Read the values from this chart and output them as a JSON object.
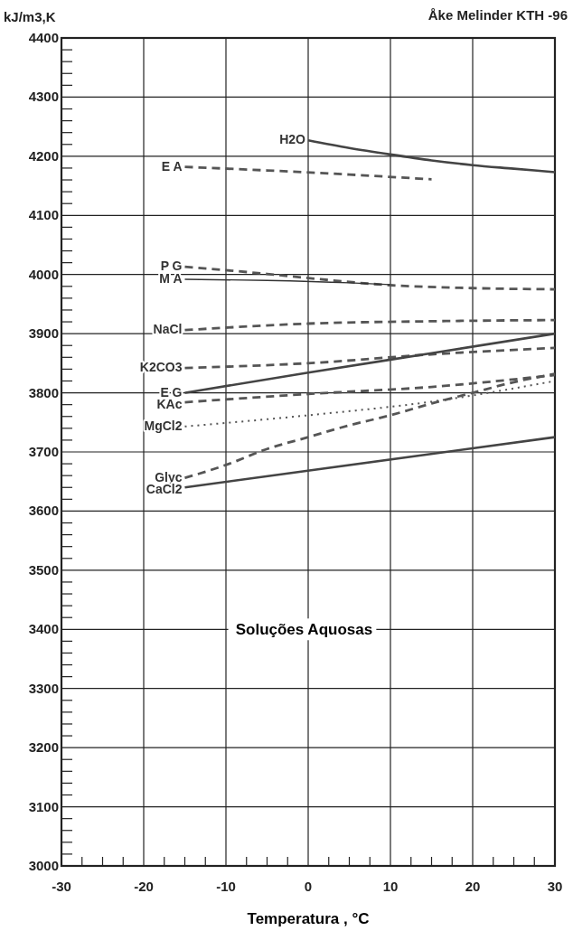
{
  "chart_data": {
    "type": "line",
    "xlabel": "Temperatura , °C",
    "ylabel": "kJ/m3,K",
    "annotations": [
      "Åke Melinder KTH -96",
      "Soluções Aquosas"
    ],
    "xlim": [
      -30,
      30
    ],
    "ylim": [
      3000,
      4400
    ],
    "xticks": [
      -30,
      {
        "value": -27.5,
        "label": null
      },
      {
        "value": -25,
        "label": null
      },
      {
        "value": -22.5,
        "label": null
      },
      -20,
      {
        "value": -17.5,
        "label": null
      },
      {
        "value": -15,
        "label": null
      },
      {
        "value": -12.5,
        "label": null
      },
      -10,
      {
        "value": -7.5,
        "label": null
      },
      {
        "value": -5,
        "label": null
      },
      {
        "value": -2.5,
        "label": null
      },
      0,
      {
        "value": 2.5,
        "label": null
      },
      {
        "value": 5,
        "label": null
      },
      {
        "value": 7.5,
        "label": null
      },
      10,
      {
        "value": 12.5,
        "label": null
      },
      {
        "value": 15,
        "label": null
      },
      {
        "value": 17.5,
        "label": null
      },
      20,
      {
        "value": 22.5,
        "label": null
      },
      {
        "value": 25,
        "label": null
      },
      {
        "value": 27.5,
        "label": null
      },
      30
    ],
    "yticks": [
      3000,
      3100,
      3200,
      3300,
      3400,
      3500,
      3600,
      3700,
      3800,
      3900,
      4000,
      4100,
      4200,
      4300,
      4400
    ],
    "grid": true,
    "marker": "none",
    "series": [
      {
        "name": "H2O",
        "color": "#444444",
        "line_style": "solid",
        "x": [
          0,
          5,
          10,
          15,
          20,
          25,
          30
        ],
        "values": [
          4227,
          4214,
          4203,
          4193,
          4185,
          4179,
          4173
        ]
      },
      {
        "name": "E A",
        "color": "#555555",
        "line_style": "dashed",
        "x": [
          -15,
          -5,
          5,
          15
        ],
        "values": [
          4182,
          4176,
          4169,
          4161
        ]
      },
      {
        "name": "P G",
        "color": "#555555",
        "line_style": "dashed",
        "x": [
          -15,
          -5,
          0,
          10,
          20,
          30
        ],
        "values": [
          4013,
          4001,
          3994,
          3982,
          3977,
          3975
        ]
      },
      {
        "name": "M A",
        "color": "#333333",
        "line_style": "solid",
        "x": [
          -15,
          -5,
          5,
          10
        ],
        "values": [
          3992,
          3990,
          3986,
          3983
        ]
      },
      {
        "name": "NaCl",
        "color": "#555555",
        "line_style": "dashed",
        "x": [
          -15,
          0,
          15,
          30
        ],
        "values": [
          3906,
          3917,
          3921,
          3923
        ]
      },
      {
        "name": "K2CO3",
        "color": "#555555",
        "line_style": "dashed",
        "x": [
          -15,
          0,
          15,
          30
        ],
        "values": [
          3842,
          3850,
          3865,
          3876
        ]
      },
      {
        "name": "E G",
        "color": "#444444",
        "line_style": "solid",
        "x": [
          -15,
          0,
          15,
          30
        ],
        "values": [
          3800,
          3834,
          3867,
          3900
        ]
      },
      {
        "name": "KAc",
        "color": "#555555",
        "line_style": "dashed",
        "x": [
          -15,
          0,
          15,
          30
        ],
        "values": [
          3784,
          3798,
          3810,
          3830
        ]
      },
      {
        "name": "MgCl2",
        "color": "#555555",
        "line_style": "dotted",
        "x": [
          -15,
          0,
          15,
          30
        ],
        "values": [
          3743,
          3762,
          3785,
          3820
        ]
      },
      {
        "name": "Glyc",
        "color": "#555555",
        "line_style": "dashed",
        "x": [
          -15,
          -10,
          -5,
          0,
          5,
          10,
          15,
          20,
          25,
          30
        ],
        "values": [
          3656,
          3678,
          3705,
          3725,
          3745,
          3762,
          3782,
          3800,
          3818,
          3832
        ]
      },
      {
        "name": "CaCl2",
        "color": "#444444",
        "line_style": "solid",
        "x": [
          -15,
          30
        ],
        "values": [
          3640,
          3725
        ]
      }
    ]
  }
}
